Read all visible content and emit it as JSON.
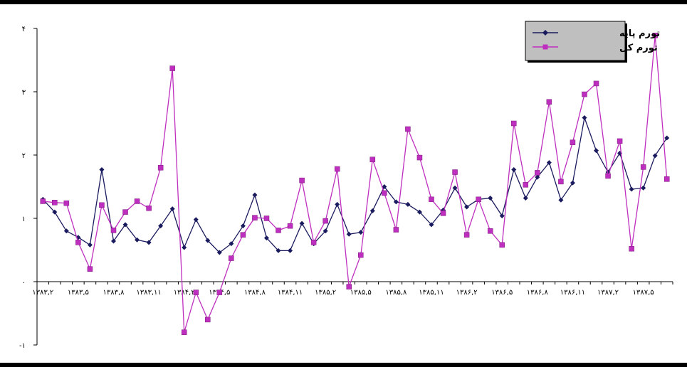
{
  "chart_data": {
    "type": "line",
    "title": "",
    "xlabel": "",
    "ylabel": "",
    "ylim": [
      -1,
      4
    ],
    "yticks": [
      "-۱",
      "۰",
      "۱",
      "۲",
      "۳",
      "۴"
    ],
    "ytick_values": [
      -1,
      0,
      1,
      2,
      3,
      4
    ],
    "xtick_labels": [
      "۱۳۸۳,۲",
      "۱۳۸۳,۵",
      "۱۳۸۳,۸",
      "۱۳۸۳,۱۱",
      "۱۳۸۴,۲",
      "۱۳۸۴,۵",
      "۱۳۸۴,۸",
      "۱۳۸۴,۱۱",
      "۱۳۸۵,۲",
      "۱۳۸۵,۵",
      "۱۳۸۵,۸",
      "۱۳۸۵,۱۱",
      "۱۳۸۶,۲",
      "۱۳۸۶,۵",
      "۱۳۸۶,۸",
      "۱۳۸۶,۱۱",
      "۱۳۸۷,۲",
      "۱۳۸۷,۵"
    ],
    "xtick_every": 3,
    "grid": false,
    "legend_position": "top-right",
    "series": [
      {
        "name": "تورم پایه",
        "color": "#1a1a5e",
        "marker": "diamond",
        "values": [
          1.3,
          1.1,
          0.8,
          0.7,
          0.58,
          1.77,
          0.64,
          0.9,
          0.66,
          0.62,
          0.88,
          1.15,
          0.54,
          0.98,
          0.65,
          0.46,
          0.6,
          0.88,
          1.37,
          0.69,
          0.49,
          0.49,
          0.92,
          0.6,
          0.8,
          1.22,
          0.75,
          0.78,
          1.12,
          1.5,
          1.26,
          1.22,
          1.1,
          0.9,
          1.13,
          1.48,
          1.18,
          1.3,
          1.32,
          1.04,
          1.77,
          1.32,
          1.65,
          1.88,
          1.29,
          1.56,
          2.59,
          2.07,
          1.73,
          2.03,
          1.46,
          1.48,
          1.99,
          2.27
        ]
      },
      {
        "name": "تورم کل",
        "color": "#bf2fbf",
        "marker": "square",
        "values": [
          1.27,
          1.25,
          1.24,
          0.62,
          0.2,
          1.21,
          0.81,
          1.1,
          1.27,
          1.16,
          1.8,
          3.37,
          -0.8,
          -0.17,
          -0.6,
          -0.17,
          0.37,
          0.74,
          1.01,
          1.0,
          0.81,
          0.88,
          1.6,
          0.62,
          0.96,
          1.78,
          -0.08,
          0.42,
          1.93,
          1.4,
          0.82,
          2.41,
          1.96,
          1.3,
          1.08,
          1.73,
          0.74,
          1.3,
          0.8,
          0.58,
          2.5,
          1.53,
          1.72,
          2.84,
          1.58,
          2.2,
          2.96,
          3.13,
          1.67,
          2.22,
          0.52,
          1.81,
          3.89,
          1.62
        ]
      }
    ]
  }
}
